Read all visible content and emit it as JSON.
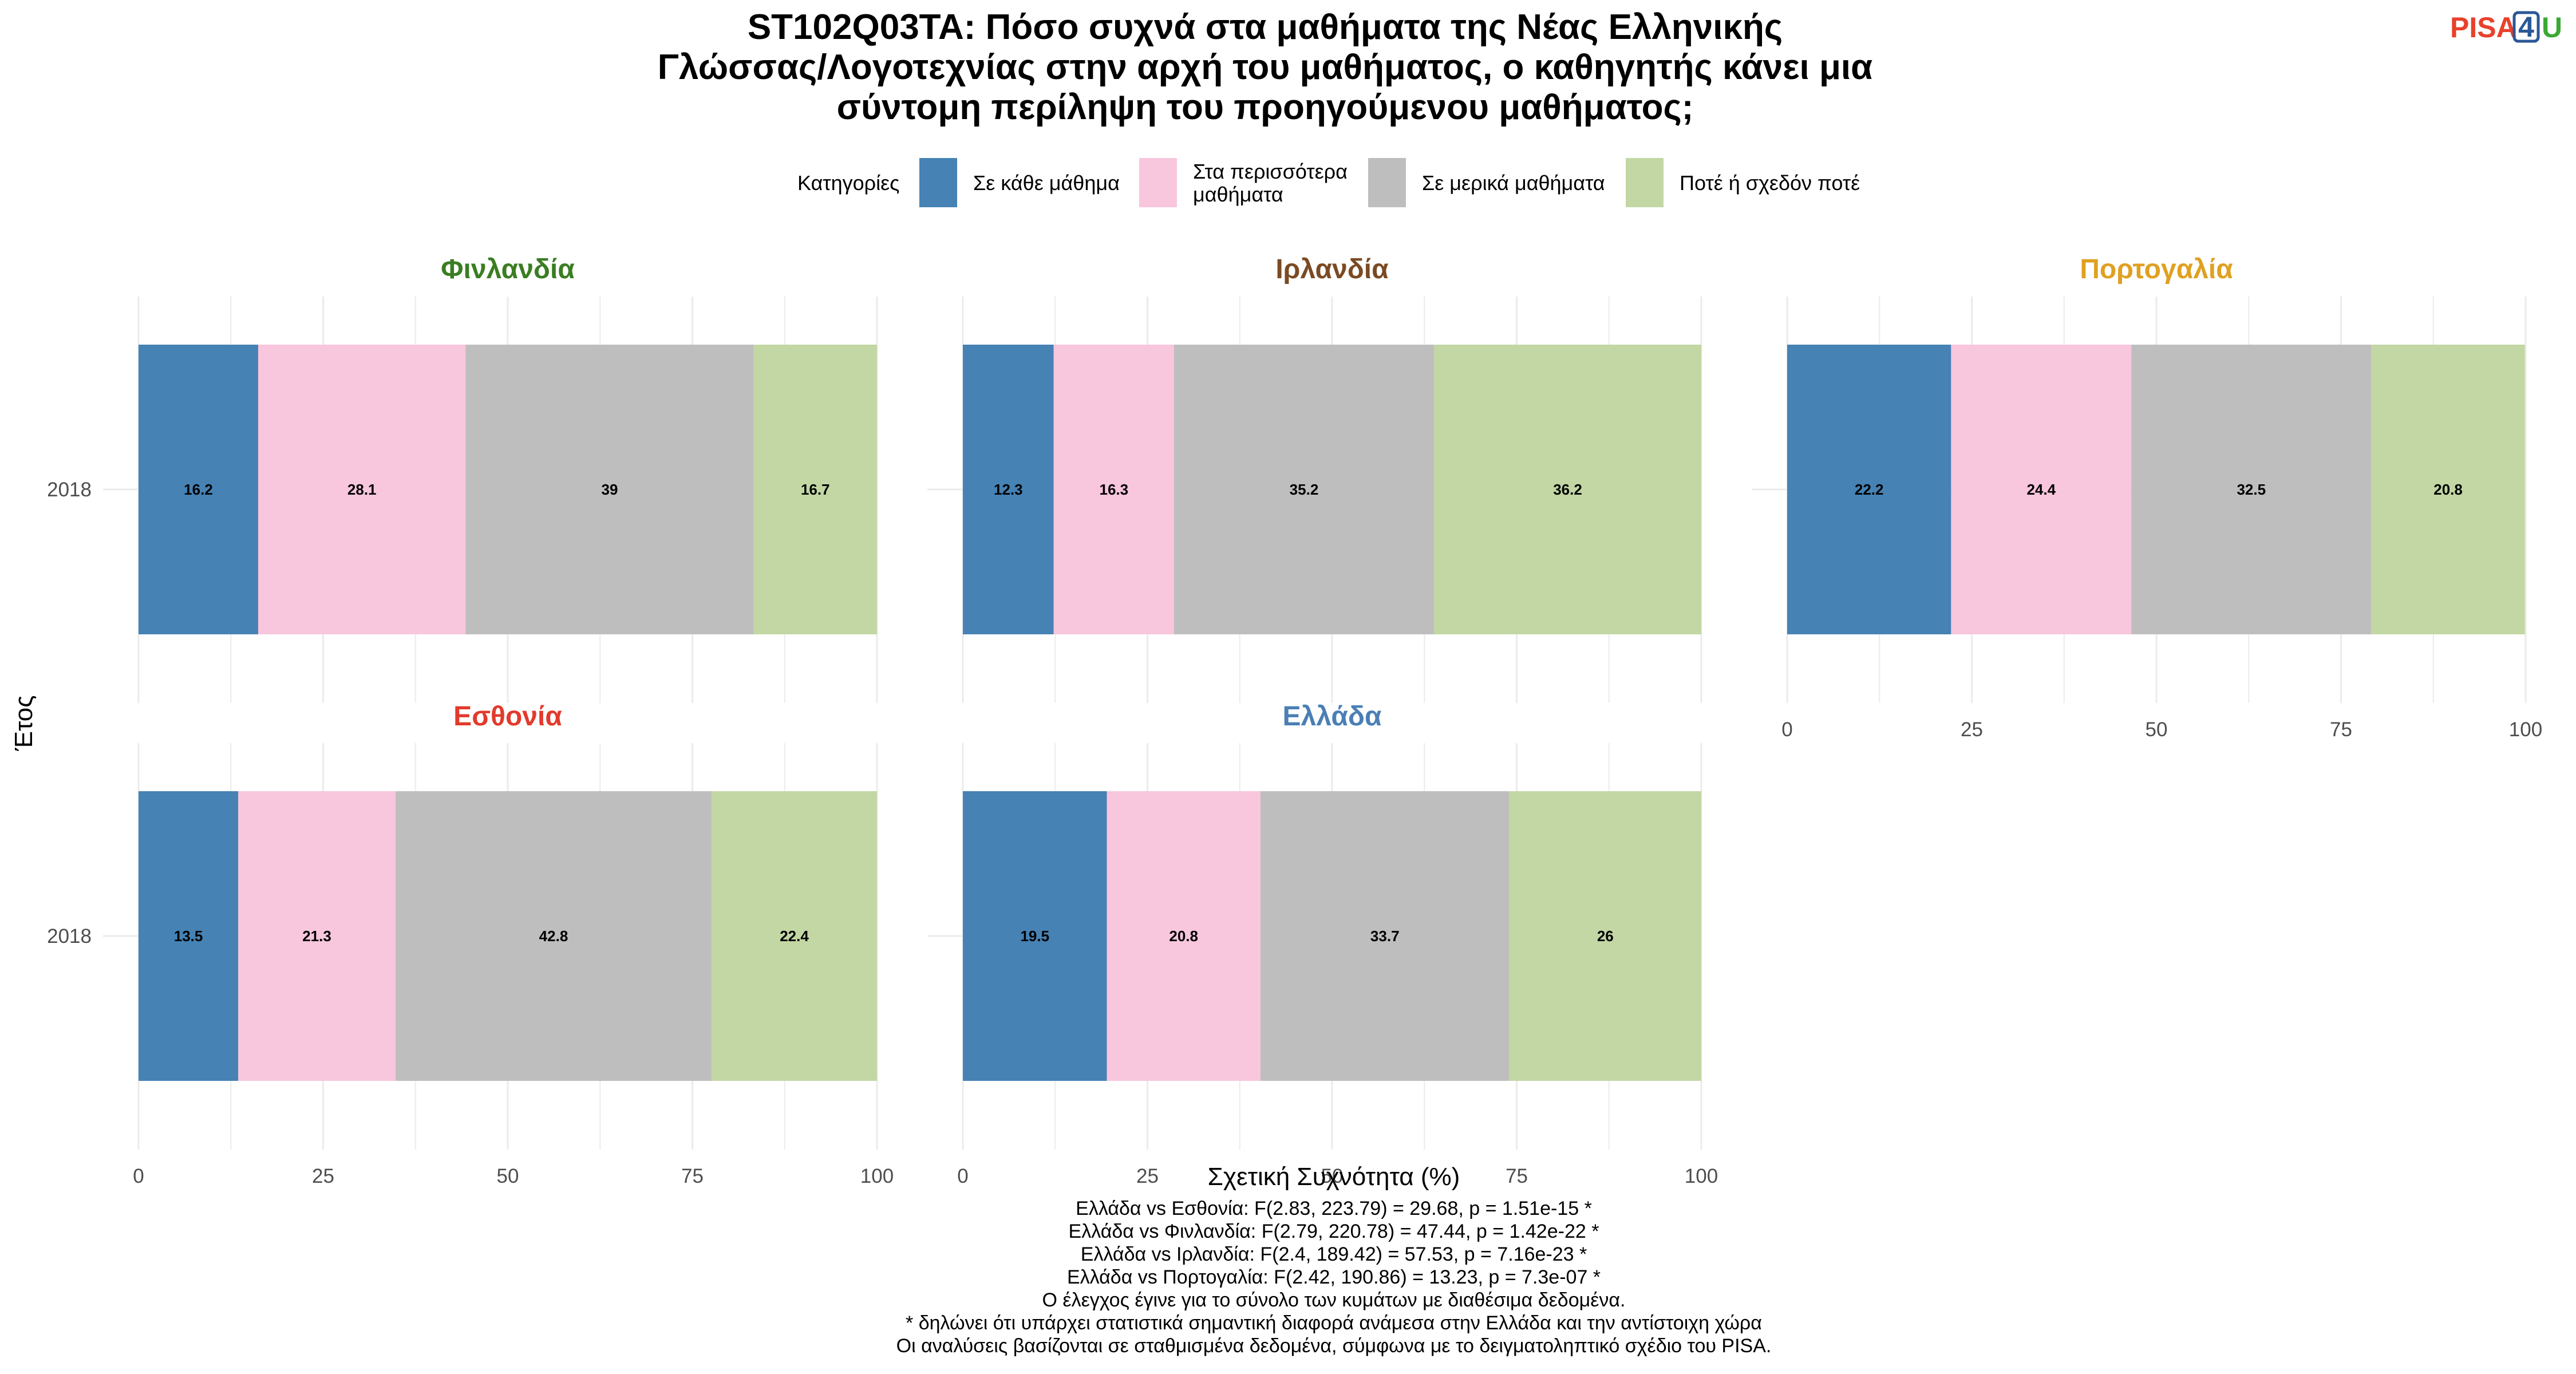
{
  "title_lines": [
    "ST102Q03TA: Πόσο συχνά στα μαθήματα της Νέας Ελληνικής",
    "Γλώσσας/Λογοτεχνίας στην αρχή του μαθήματος, ο καθηγητής κάνει μια",
    "σύντομη περίληψη του προηγούμενου μαθήματος;"
  ],
  "logo": {
    "part1": "PISA",
    "part2": "4",
    "part3": "U",
    "colors": {
      "pisa": "#e8412b",
      "four": "#2b5797",
      "u": "#3aa935"
    }
  },
  "legend": {
    "title": "Κατηγορίες",
    "items": [
      {
        "lines": [
          "Σε κάθε μάθημα"
        ],
        "color": "#4682b4"
      },
      {
        "lines": [
          "Στα περισσότερα",
          "μαθήματα"
        ],
        "color": "#f8c6dd"
      },
      {
        "lines": [
          "Σε μερικά μαθήματα"
        ],
        "color": "#bebebe"
      },
      {
        "lines": [
          "Ποτέ ή σχεδόν ποτέ"
        ],
        "color": "#c3d7a4"
      }
    ]
  },
  "chart_data": {
    "type": "bar",
    "orientation": "horizontal",
    "stacked": true,
    "xlabel": "Σχετική Συχνότητα (%)",
    "ylabel": "Έτος",
    "xlim": [
      0,
      100
    ],
    "xticks": [
      0,
      25,
      50,
      75,
      100
    ],
    "categories": [
      "Σε κάθε μάθημα",
      "Στα περισσότερα μαθήματα",
      "Σε μερικά μαθήματα",
      "Ποτέ ή σχεδόν ποτέ"
    ],
    "panels": [
      {
        "name": "Φινλανδία",
        "color": "#3a7d22",
        "year": "2018",
        "values": [
          16.2,
          28.1,
          39,
          16.7
        ]
      },
      {
        "name": "Ιρλανδία",
        "color": "#7b4a23",
        "year": "2018",
        "values": [
          12.3,
          16.3,
          35.2,
          36.2
        ]
      },
      {
        "name": "Πορτογαλία",
        "color": "#e0a020",
        "year": "2018",
        "values": [
          22.2,
          24.4,
          32.5,
          20.8
        ]
      },
      {
        "name": "Εσθονία",
        "color": "#e23a2c",
        "year": "2018",
        "values": [
          13.5,
          21.3,
          42.8,
          22.4
        ]
      },
      {
        "name": "Ελλάδα",
        "color": "#4a7fb5",
        "year": "2018",
        "values": [
          19.5,
          20.8,
          33.7,
          26
        ]
      }
    ]
  },
  "caption_lines": [
    "Ελλάδα vs Εσθονία: F(2.83, 223.79) = 29.68, p = 1.51e-15 *",
    "Ελλάδα vs Φινλανδία: F(2.79, 220.78) = 47.44, p = 1.42e-22 *",
    "Ελλάδα vs Ιρλανδία: F(2.4, 189.42) = 57.53, p = 7.16e-23 *",
    "Ελλάδα vs Πορτογαλία: F(2.42, 190.86) = 13.23, p = 7.3e-07 *",
    "Ο έλεγχος έγινε για το σύνολο των κυμάτων με διαθέσιμα δεδομένα.",
    "* δηλώνει ότι υπάρχει στατιστικά σημαντική διαφορά ανάμεσα στην Ελλάδα και την αντίστοιχη χώρα",
    "Οι αναλύσεις βασίζονται σε σταθμισμένα δεδομένα, σύμφωνα με το δειγματοληπτικό σχέδιο του PISA."
  ]
}
